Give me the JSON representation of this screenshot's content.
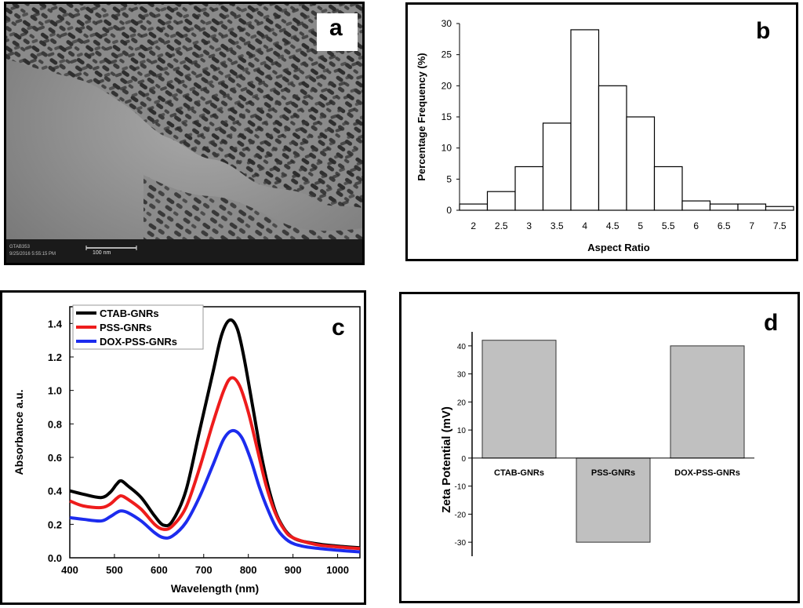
{
  "figure": {
    "panel_a": {
      "label": "a",
      "scale_bar_label": "100 nm",
      "meta_line1": "GTAB353",
      "meta_line2": "9/25/2016  5:55:15 PM"
    },
    "panel_b": {
      "label": "b"
    },
    "panel_c": {
      "label": "c"
    },
    "panel_d": {
      "label": "d"
    }
  },
  "colors": {
    "ctab": "#000000",
    "pss": "#ee1c1c",
    "dox": "#1c2cee",
    "bar_gray": "#c0c0c0"
  },
  "chart_data": [
    {
      "id": "b",
      "type": "bar",
      "title": "",
      "xlabel": "Aspect Ratio",
      "ylabel": "Percentage Frequency (%)",
      "categories": [
        "2",
        "2.5",
        "3",
        "3.5",
        "4",
        "4.5",
        "5",
        "5.5",
        "6",
        "6.5",
        "7",
        "7.5"
      ],
      "values": [
        1,
        3,
        7,
        14,
        29,
        20,
        15,
        7,
        1.5,
        1,
        1,
        0.6
      ],
      "ylim": [
        0,
        30
      ],
      "yticks": [
        0,
        5,
        10,
        15,
        20,
        25,
        30
      ]
    },
    {
      "id": "c",
      "type": "line",
      "title": "",
      "xlabel": "Wavelength (nm)",
      "ylabel": "Absorbance a.u.",
      "xlim": [
        400,
        1050
      ],
      "ylim": [
        0,
        1.5
      ],
      "xticks": [
        400,
        500,
        600,
        700,
        800,
        900,
        1000
      ],
      "yticks": [
        0.0,
        0.2,
        0.4,
        0.6,
        0.8,
        1.0,
        1.2,
        1.4
      ],
      "ytick_labels": [
        "0.0",
        "0.2",
        "0.4",
        "0.6",
        "0.8",
        "1.0",
        "1.2",
        "1.4"
      ],
      "legend": "top-left",
      "series": [
        {
          "name": "CTAB-GNRs",
          "color": "#000000",
          "points": [
            [
              400,
              0.4
            ],
            [
              430,
              0.38
            ],
            [
              470,
              0.36
            ],
            [
              490,
              0.39
            ],
            [
              505,
              0.44
            ],
            [
              515,
              0.46
            ],
            [
              530,
              0.43
            ],
            [
              560,
              0.36
            ],
            [
              590,
              0.25
            ],
            [
              610,
              0.195
            ],
            [
              630,
              0.22
            ],
            [
              660,
              0.4
            ],
            [
              690,
              0.75
            ],
            [
              720,
              1.1
            ],
            [
              740,
              1.33
            ],
            [
              758,
              1.42
            ],
            [
              775,
              1.37
            ],
            [
              790,
              1.2
            ],
            [
              810,
              0.9
            ],
            [
              830,
              0.6
            ],
            [
              850,
              0.37
            ],
            [
              870,
              0.22
            ],
            [
              900,
              0.12
            ],
            [
              950,
              0.085
            ],
            [
              1000,
              0.07
            ],
            [
              1050,
              0.06
            ]
          ]
        },
        {
          "name": "PSS-GNRs",
          "color": "#ee1c1c",
          "points": [
            [
              400,
              0.34
            ],
            [
              430,
              0.31
            ],
            [
              470,
              0.3
            ],
            [
              490,
              0.32
            ],
            [
              505,
              0.355
            ],
            [
              515,
              0.37
            ],
            [
              530,
              0.35
            ],
            [
              560,
              0.29
            ],
            [
              590,
              0.2
            ],
            [
              610,
              0.17
            ],
            [
              630,
              0.19
            ],
            [
              660,
              0.3
            ],
            [
              690,
              0.53
            ],
            [
              720,
              0.8
            ],
            [
              745,
              1.0
            ],
            [
              762,
              1.075
            ],
            [
              780,
              1.03
            ],
            [
              800,
              0.87
            ],
            [
              820,
              0.65
            ],
            [
              840,
              0.43
            ],
            [
              860,
              0.27
            ],
            [
              880,
              0.17
            ],
            [
              900,
              0.12
            ],
            [
              950,
              0.08
            ],
            [
              1000,
              0.065
            ],
            [
              1050,
              0.055
            ]
          ]
        },
        {
          "name": "DOX-PSS-GNRs",
          "color": "#1c2cee",
          "points": [
            [
              400,
              0.24
            ],
            [
              430,
              0.23
            ],
            [
              470,
              0.22
            ],
            [
              490,
              0.245
            ],
            [
              505,
              0.27
            ],
            [
              515,
              0.28
            ],
            [
              530,
              0.27
            ],
            [
              560,
              0.22
            ],
            [
              590,
              0.15
            ],
            [
              610,
              0.12
            ],
            [
              630,
              0.13
            ],
            [
              660,
              0.21
            ],
            [
              690,
              0.36
            ],
            [
              720,
              0.55
            ],
            [
              745,
              0.71
            ],
            [
              765,
              0.76
            ],
            [
              785,
              0.72
            ],
            [
              805,
              0.59
            ],
            [
              825,
              0.42
            ],
            [
              845,
              0.28
            ],
            [
              865,
              0.17
            ],
            [
              890,
              0.1
            ],
            [
              920,
              0.07
            ],
            [
              960,
              0.055
            ],
            [
              1000,
              0.045
            ],
            [
              1050,
              0.035
            ]
          ]
        }
      ]
    },
    {
      "id": "d",
      "type": "bar",
      "title": "",
      "xlabel": "",
      "ylabel": "Zeta Potential (mV)",
      "categories": [
        "CTAB-GNRs",
        "PSS-GNRs",
        "DOX-PSS-GNRs"
      ],
      "values": [
        42,
        -30,
        40
      ],
      "ylim": [
        -35,
        45
      ],
      "yticks": [
        -30,
        -20,
        -10,
        0,
        10,
        20,
        30,
        40
      ]
    }
  ]
}
